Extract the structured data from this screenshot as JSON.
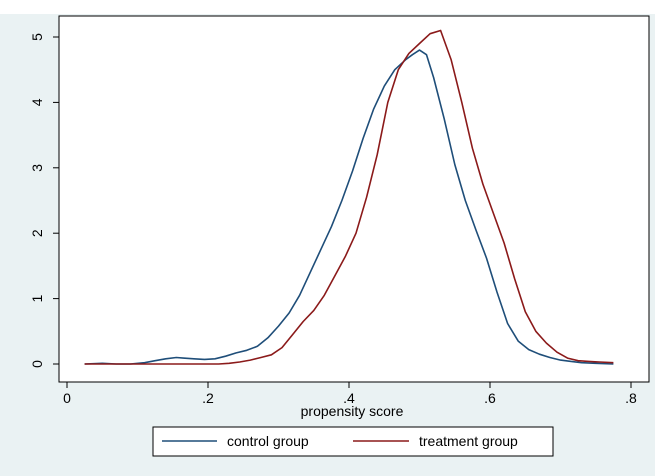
{
  "chart_data": {
    "type": "line",
    "xlabel": "propensity score",
    "ylabel": "",
    "xlim": [
      0,
      0.8
    ],
    "ylim": [
      0,
      5
    ],
    "x_ticks": [
      0,
      0.2,
      0.4,
      0.6,
      0.8
    ],
    "x_tick_labels": [
      "0",
      ".2",
      ".4",
      ".6",
      ".8"
    ],
    "y_ticks": [
      0,
      1,
      2,
      3,
      4,
      5
    ],
    "y_tick_labels": [
      "0",
      "1",
      "2",
      "3",
      "4",
      "5"
    ],
    "grid": false,
    "legend_position": "bottom",
    "series": [
      {
        "name": "control group",
        "color": "#1f4e79",
        "x": [
          0.025,
          0.05,
          0.07,
          0.09,
          0.11,
          0.125,
          0.14,
          0.155,
          0.165,
          0.18,
          0.195,
          0.21,
          0.225,
          0.24,
          0.255,
          0.27,
          0.285,
          0.3,
          0.315,
          0.33,
          0.345,
          0.36,
          0.375,
          0.39,
          0.405,
          0.42,
          0.435,
          0.45,
          0.465,
          0.48,
          0.49,
          0.5,
          0.51,
          0.52,
          0.535,
          0.55,
          0.565,
          0.58,
          0.595,
          0.61,
          0.625,
          0.64,
          0.655,
          0.67,
          0.685,
          0.7,
          0.715,
          0.73,
          0.75,
          0.775
        ],
        "y": [
          0.0,
          0.01,
          0.0,
          0.0,
          0.02,
          0.05,
          0.08,
          0.1,
          0.09,
          0.08,
          0.07,
          0.08,
          0.12,
          0.17,
          0.21,
          0.27,
          0.4,
          0.58,
          0.78,
          1.05,
          1.4,
          1.75,
          2.1,
          2.5,
          2.95,
          3.45,
          3.9,
          4.25,
          4.5,
          4.65,
          4.73,
          4.8,
          4.73,
          4.38,
          3.75,
          3.05,
          2.5,
          2.05,
          1.62,
          1.1,
          0.62,
          0.35,
          0.22,
          0.15,
          0.1,
          0.06,
          0.04,
          0.02,
          0.01,
          0.0
        ]
      },
      {
        "name": "treatment group",
        "color": "#8b1a1a",
        "x": [
          0.025,
          0.05,
          0.07,
          0.09,
          0.11,
          0.125,
          0.14,
          0.155,
          0.17,
          0.185,
          0.2,
          0.215,
          0.23,
          0.245,
          0.26,
          0.275,
          0.29,
          0.305,
          0.32,
          0.335,
          0.35,
          0.365,
          0.38,
          0.395,
          0.41,
          0.425,
          0.44,
          0.455,
          0.47,
          0.485,
          0.5,
          0.515,
          0.53,
          0.545,
          0.56,
          0.575,
          0.59,
          0.605,
          0.62,
          0.635,
          0.65,
          0.665,
          0.68,
          0.695,
          0.71,
          0.725,
          0.74,
          0.755,
          0.775
        ],
        "y": [
          0.0,
          0.0,
          0.0,
          0.0,
          0.0,
          0.0,
          0.0,
          0.0,
          0.0,
          0.0,
          0.0,
          0.0,
          0.01,
          0.03,
          0.06,
          0.1,
          0.14,
          0.25,
          0.45,
          0.65,
          0.82,
          1.05,
          1.35,
          1.65,
          2.0,
          2.55,
          3.2,
          4.0,
          4.5,
          4.75,
          4.9,
          5.05,
          5.1,
          4.65,
          4.0,
          3.3,
          2.75,
          2.3,
          1.85,
          1.3,
          0.8,
          0.5,
          0.32,
          0.18,
          0.09,
          0.05,
          0.04,
          0.03,
          0.02
        ]
      }
    ]
  }
}
